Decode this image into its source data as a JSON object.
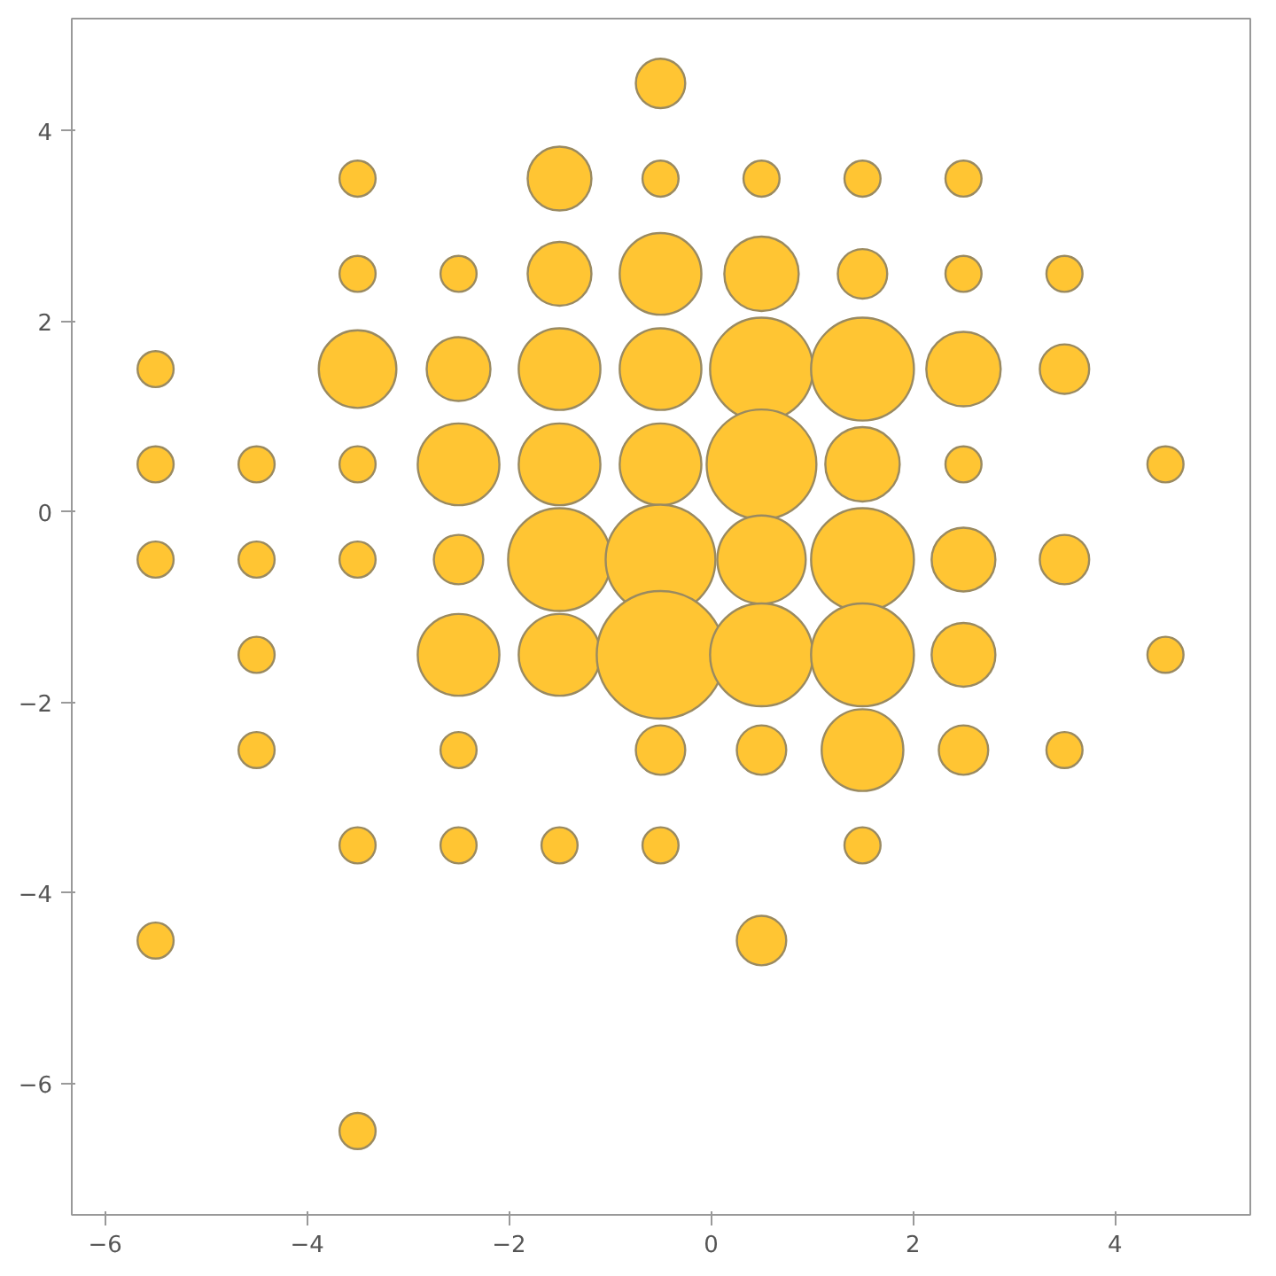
{
  "chart_data": {
    "type": "bubble",
    "color": "#ffc533",
    "marker": "circle",
    "grid": false,
    "xlim": [
      -6.33,
      5.34
    ],
    "ylim": [
      -7.38,
      5.18
    ],
    "xticks": [
      -6,
      -4,
      -2,
      0,
      2,
      4
    ],
    "yticks": [
      -6,
      -4,
      -2,
      0,
      2,
      4
    ],
    "x": [
      -0.5,
      -3.5,
      -1.5,
      -0.5,
      0.5,
      1.5,
      2.5,
      -3.5,
      -2.5,
      -1.5,
      -0.5,
      0.5,
      1.5,
      2.5,
      3.5,
      -5.5,
      -3.5,
      -2.5,
      -1.5,
      -0.5,
      0.5,
      1.5,
      2.5,
      3.5,
      -5.5,
      -4.5,
      -3.5,
      -2.5,
      -1.5,
      -0.5,
      0.5,
      1.5,
      2.5,
      4.5,
      -5.5,
      -4.5,
      -3.5,
      -2.5,
      -1.5,
      -0.5,
      0.5,
      1.5,
      2.5,
      3.5,
      -4.5,
      -2.5,
      -1.5,
      -0.5,
      0.5,
      1.5,
      2.5,
      4.5,
      -4.5,
      -2.5,
      -0.5,
      0.5,
      1.5,
      2.5,
      3.5,
      -3.5,
      -2.5,
      -1.5,
      -0.5,
      1.5,
      -5.5,
      0.5,
      -3.5
    ],
    "values": [
      4.5,
      3.5,
      3.5,
      3.5,
      3.5,
      3.5,
      3.5,
      2.5,
      2.5,
      2.5,
      2.5,
      2.5,
      2.5,
      2.5,
      2.5,
      1.5,
      1.5,
      1.5,
      1.5,
      1.5,
      1.5,
      1.5,
      1.5,
      1.5,
      0.5,
      0.5,
      0.5,
      0.5,
      0.5,
      0.5,
      0.5,
      0.5,
      0.5,
      0.5,
      -0.5,
      -0.5,
      -0.5,
      -0.5,
      -0.5,
      -0.5,
      -0.5,
      -0.5,
      -0.5,
      -0.5,
      -1.5,
      -1.5,
      -1.5,
      -1.5,
      -1.5,
      -1.5,
      -1.5,
      -1.5,
      -2.5,
      -2.5,
      -2.5,
      -2.5,
      -2.5,
      -2.5,
      -2.5,
      -3.5,
      -3.5,
      -3.5,
      -3.5,
      -3.5,
      -4.5,
      -4.5,
      -6.5
    ],
    "sizes": [
      0.15,
      0.08,
      0.25,
      0.08,
      0.08,
      0.08,
      0.08,
      0.08,
      0.08,
      0.25,
      0.41,
      0.34,
      0.15,
      0.08,
      0.08,
      0.08,
      0.37,
      0.25,
      0.41,
      0.41,
      0.65,
      0.65,
      0.34,
      0.15,
      0.08,
      0.08,
      0.08,
      0.41,
      0.41,
      0.41,
      0.74,
      0.34,
      0.08,
      0.08,
      0.08,
      0.08,
      0.08,
      0.15,
      0.65,
      0.74,
      0.48,
      0.65,
      0.25,
      0.15,
      0.08,
      0.41,
      0.41,
      1,
      0.65,
      0.65,
      0.25,
      0.08,
      0.08,
      0.08,
      0.15,
      0.15,
      0.41,
      0.15,
      0.08,
      0.08,
      0.08,
      0.08,
      0.08,
      0.08,
      0.08,
      0.15,
      0.08
    ]
  }
}
